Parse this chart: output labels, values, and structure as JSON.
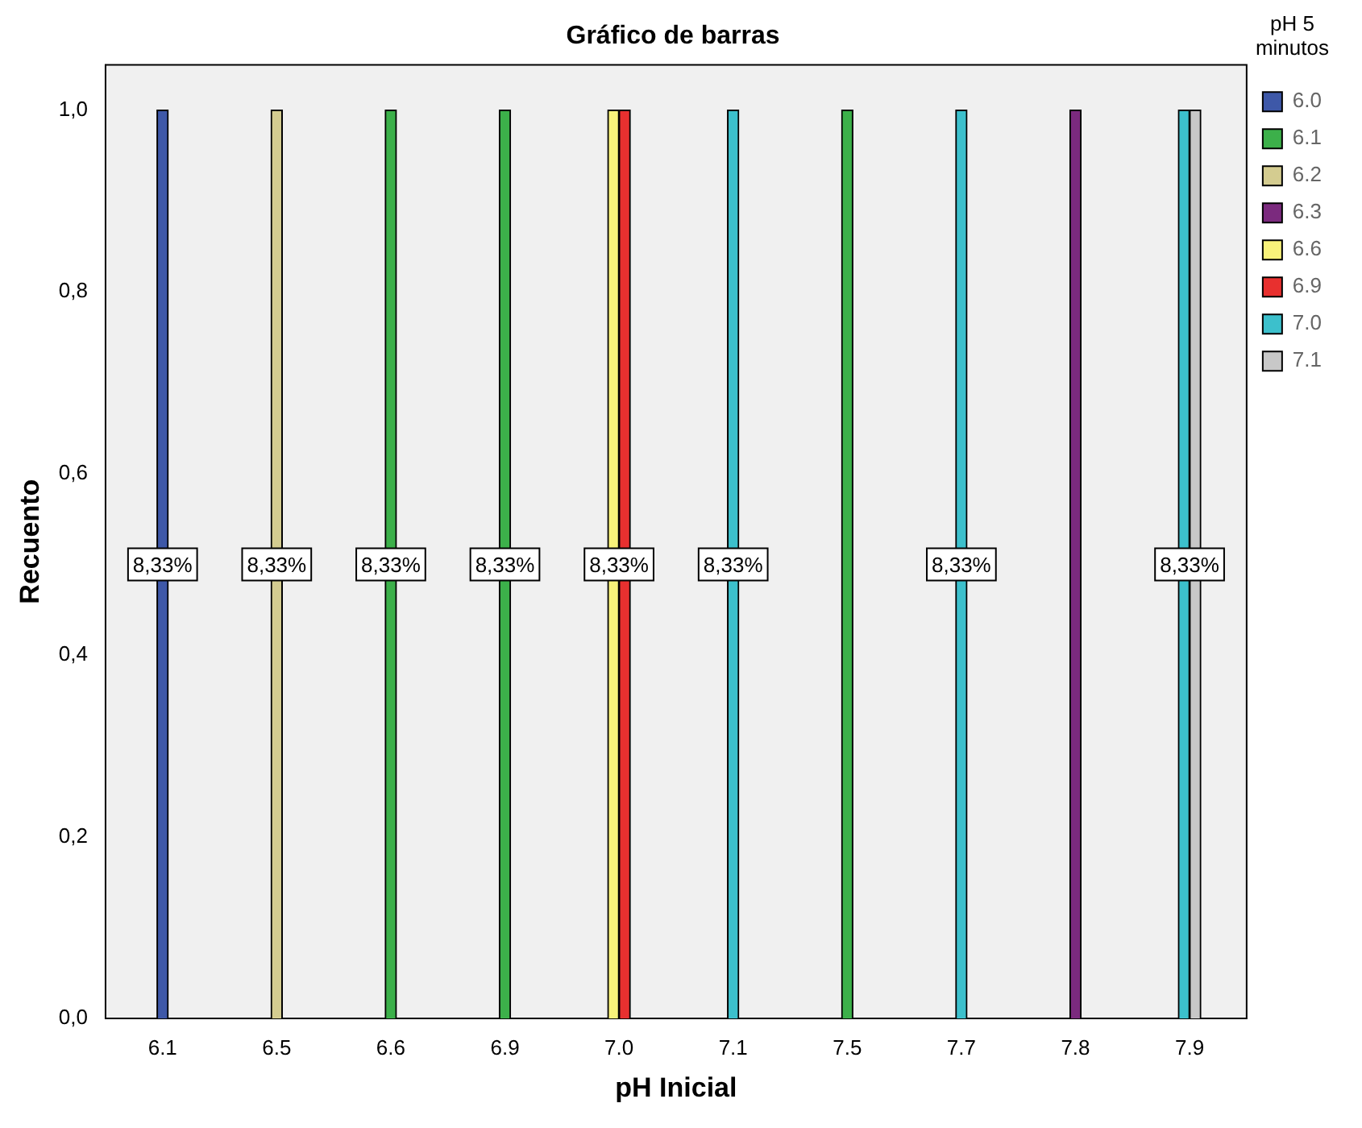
{
  "chart_data": {
    "type": "bar",
    "title": "Gráfico de barras",
    "xlabel": "pH Inicial",
    "ylabel": "Recuento",
    "legend_title": "pH 5 minutos",
    "legend": "right",
    "categories": [
      "6.1",
      "6.5",
      "6.6",
      "6.9",
      "7.0",
      "7.1",
      "7.5",
      "7.7",
      "7.8",
      "7.9"
    ],
    "series": [
      {
        "name": "6.0",
        "color": "#3e58a8",
        "values": [
          1,
          null,
          null,
          null,
          null,
          null,
          null,
          null,
          null,
          null
        ]
      },
      {
        "name": "6.1",
        "color": "#3cb04a",
        "values": [
          null,
          null,
          1,
          1,
          null,
          null,
          1,
          null,
          null,
          null
        ]
      },
      {
        "name": "6.2",
        "color": "#d4cc90",
        "values": [
          null,
          1,
          null,
          null,
          null,
          null,
          null,
          null,
          null,
          null
        ]
      },
      {
        "name": "6.3",
        "color": "#7b2a7e",
        "values": [
          null,
          null,
          null,
          null,
          null,
          null,
          null,
          null,
          1,
          null
        ]
      },
      {
        "name": "6.6",
        "color": "#f8f27a",
        "values": [
          null,
          null,
          null,
          null,
          1,
          null,
          null,
          null,
          null,
          null
        ]
      },
      {
        "name": "6.9",
        "color": "#e8302f",
        "values": [
          null,
          null,
          null,
          null,
          1,
          null,
          null,
          null,
          null,
          null
        ]
      },
      {
        "name": "7.0",
        "color": "#3cc0cc",
        "values": [
          null,
          null,
          null,
          null,
          null,
          1,
          null,
          1,
          null,
          1
        ]
      },
      {
        "name": "7.1",
        "color": "#c8c8c8",
        "values": [
          null,
          null,
          null,
          null,
          null,
          null,
          null,
          null,
          null,
          1
        ]
      }
    ],
    "annotations": [
      {
        "text": "8,33%",
        "x": "6.1",
        "y": 0.5
      },
      {
        "text": "8,33%",
        "x": "6.5",
        "y": 0.5
      },
      {
        "text": "8,33%",
        "x": "6.6",
        "y": 0.5
      },
      {
        "text": "8,33%",
        "x": "6.9",
        "y": 0.5
      },
      {
        "text": "8,33%",
        "x": "7.0",
        "y": 0.5
      },
      {
        "text": "8,33%",
        "x": "7.1",
        "y": 0.5
      },
      {
        "text": "8,33%",
        "x": "7.7",
        "y": 0.5
      },
      {
        "text": "8,33%",
        "x": "7.9",
        "y": 0.5
      }
    ],
    "ylim": [
      0,
      1.05
    ],
    "yticks": [
      {
        "value": 0,
        "label": "0,0"
      },
      {
        "value": 0.2,
        "label": "0,2"
      },
      {
        "value": 0.4,
        "label": "0,4"
      },
      {
        "value": 0.6,
        "label": "0,6"
      },
      {
        "value": 0.8,
        "label": "0,8"
      },
      {
        "value": 1,
        "label": "1,0"
      }
    ]
  }
}
